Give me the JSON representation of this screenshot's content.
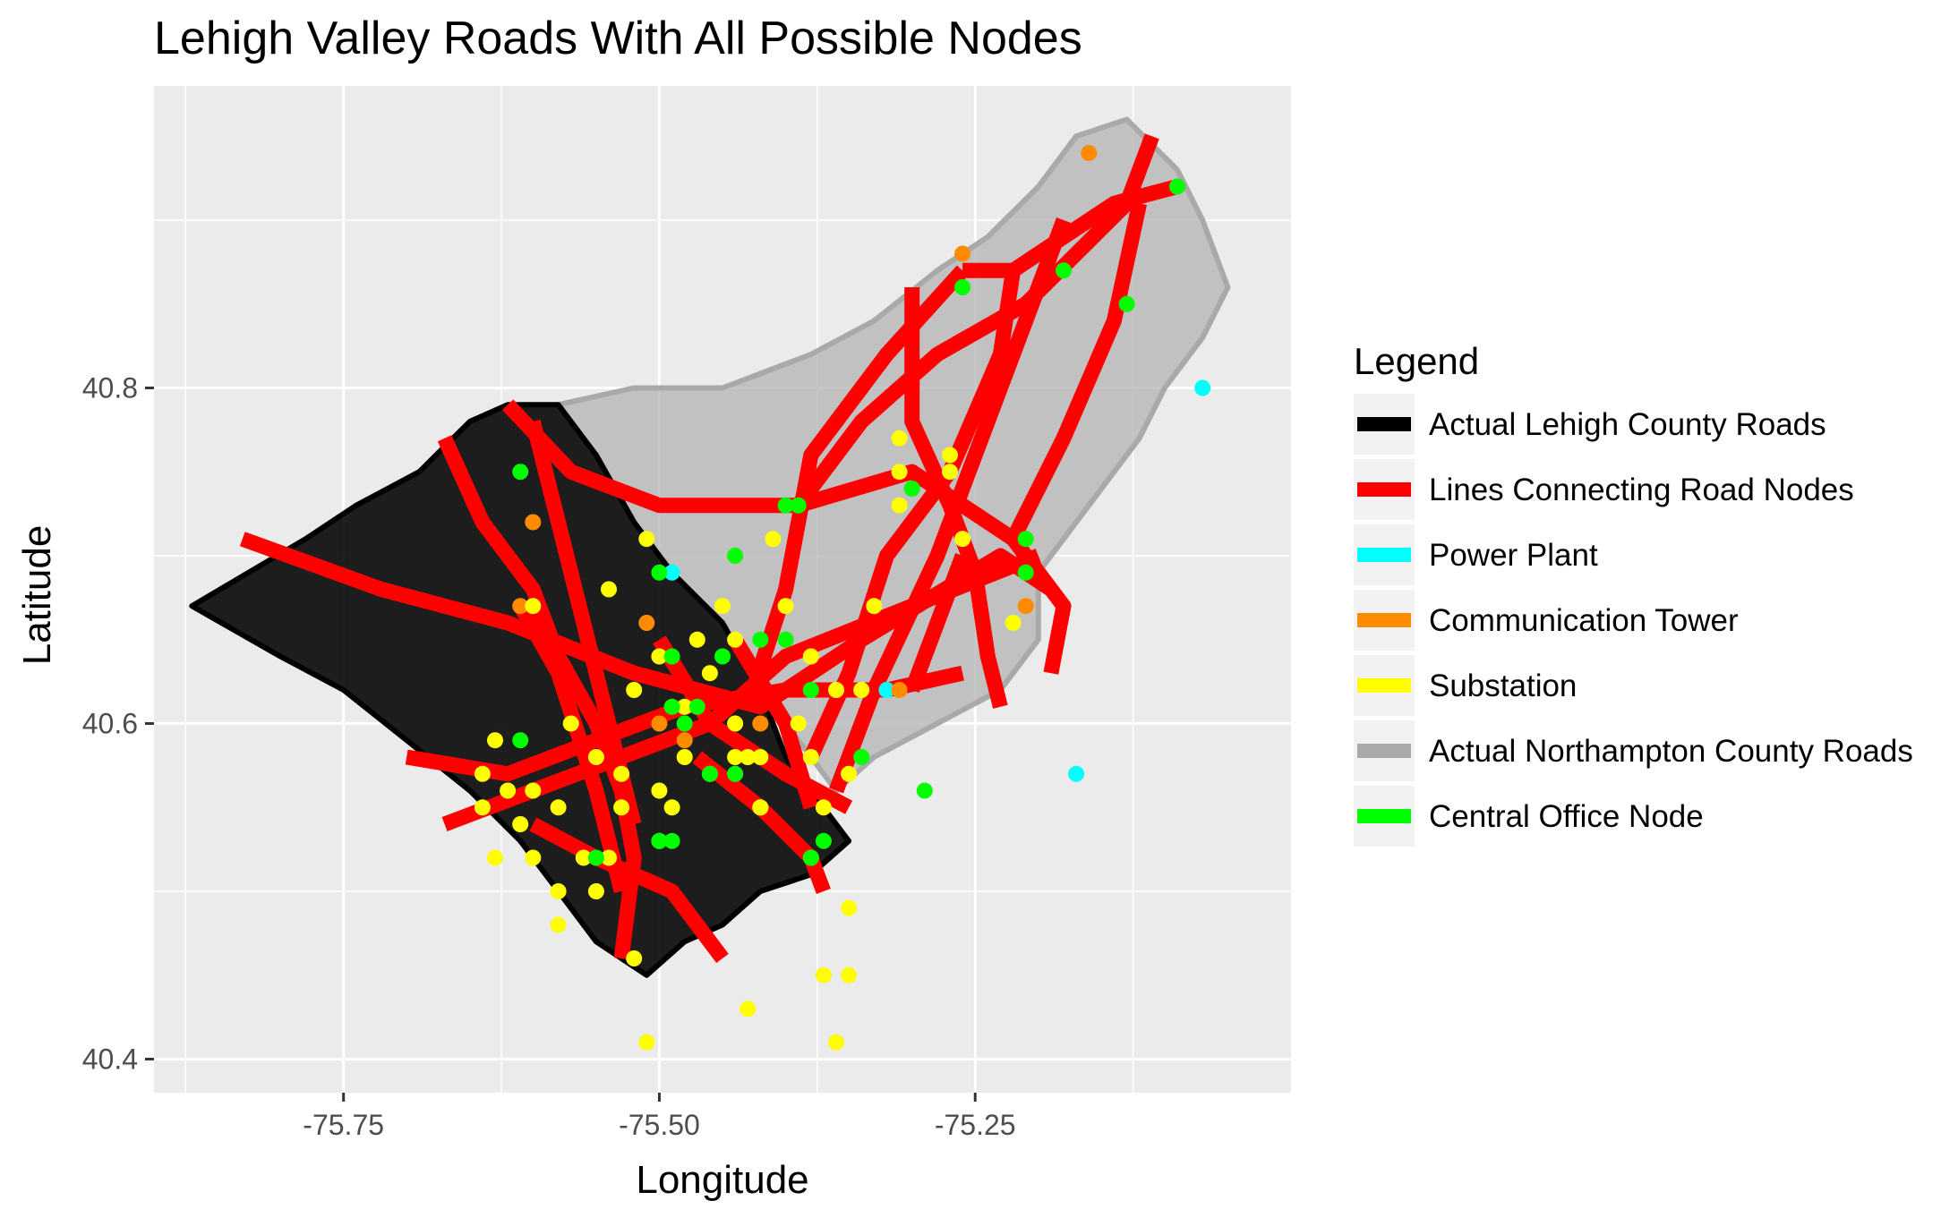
{
  "chart_data": {
    "type": "map",
    "title": "Lehigh Valley Roads With All Possible Nodes",
    "xlabel": "Longitude",
    "ylabel": "Latitude",
    "xlim": [
      -75.9,
      -75.0
    ],
    "ylim": [
      40.38,
      40.98
    ],
    "xticks": [
      -75.75,
      -75.5,
      -75.25
    ],
    "xtick_labels": [
      "-75.75",
      "-75.50",
      "-75.25"
    ],
    "yticks": [
      40.4,
      40.6,
      40.8
    ],
    "ytick_labels": [
      "40.4",
      "40.6",
      "40.8"
    ],
    "grid": true,
    "legend": {
      "title": "Legend",
      "position": "right",
      "entries": [
        {
          "label": "Actual Lehigh County Roads",
          "color": "#000000"
        },
        {
          "label": "Lines Connecting Road Nodes",
          "color": "#ff0000"
        },
        {
          "label": "Power Plant",
          "color": "#00ffff"
        },
        {
          "label": "Communication Tower",
          "color": "#ff8c00"
        },
        {
          "label": "Substation",
          "color": "#ffff00"
        },
        {
          "label": "Actual Northampton County Roads",
          "color": "#a9a9a9"
        },
        {
          "label": "Central Office Node",
          "color": "#00ff00"
        }
      ]
    },
    "regions": {
      "lehigh_county": [
        [
          -75.87,
          40.67
        ],
        [
          -75.78,
          40.71
        ],
        [
          -75.74,
          40.73
        ],
        [
          -75.69,
          40.75
        ],
        [
          -75.65,
          40.78
        ],
        [
          -75.62,
          40.79
        ],
        [
          -75.58,
          40.79
        ],
        [
          -75.55,
          40.76
        ],
        [
          -75.52,
          40.72
        ],
        [
          -75.49,
          40.69
        ],
        [
          -75.45,
          40.66
        ],
        [
          -75.42,
          40.62
        ],
        [
          -75.4,
          40.58
        ],
        [
          -75.37,
          40.55
        ],
        [
          -75.35,
          40.53
        ],
        [
          -75.38,
          40.51
        ],
        [
          -75.42,
          40.5
        ],
        [
          -75.45,
          40.48
        ],
        [
          -75.48,
          40.47
        ],
        [
          -75.51,
          40.45
        ],
        [
          -75.55,
          40.47
        ],
        [
          -75.58,
          40.5
        ],
        [
          -75.61,
          40.53
        ],
        [
          -75.65,
          40.56
        ],
        [
          -75.7,
          40.59
        ],
        [
          -75.75,
          40.62
        ],
        [
          -75.8,
          40.64
        ]
      ],
      "northampton_county": [
        [
          -75.58,
          40.79
        ],
        [
          -75.52,
          40.8
        ],
        [
          -75.45,
          40.8
        ],
        [
          -75.38,
          40.82
        ],
        [
          -75.33,
          40.84
        ],
        [
          -75.28,
          40.87
        ],
        [
          -75.24,
          40.89
        ],
        [
          -75.2,
          40.92
        ],
        [
          -75.17,
          40.95
        ],
        [
          -75.13,
          40.96
        ],
        [
          -75.09,
          40.93
        ],
        [
          -75.07,
          40.9
        ],
        [
          -75.05,
          40.86
        ],
        [
          -75.07,
          40.83
        ],
        [
          -75.1,
          40.8
        ],
        [
          -75.12,
          40.77
        ],
        [
          -75.16,
          40.73
        ],
        [
          -75.2,
          40.69
        ],
        [
          -75.2,
          40.65
        ],
        [
          -75.23,
          40.62
        ],
        [
          -75.28,
          40.6
        ],
        [
          -75.33,
          40.58
        ],
        [
          -75.36,
          40.56
        ],
        [
          -75.38,
          40.58
        ],
        [
          -75.4,
          40.6
        ],
        [
          -75.42,
          40.62
        ],
        [
          -75.45,
          40.66
        ],
        [
          -75.49,
          40.69
        ],
        [
          -75.52,
          40.72
        ],
        [
          -75.55,
          40.76
        ]
      ]
    },
    "connecting_lines": [
      [
        [
          -75.83,
          40.71
        ],
        [
          -75.72,
          40.68
        ],
        [
          -75.62,
          40.66
        ],
        [
          -75.52,
          40.63
        ],
        [
          -75.42,
          40.61
        ],
        [
          -75.34,
          40.65
        ],
        [
          -75.23,
          40.7
        ],
        [
          -75.19,
          40.68
        ]
      ],
      [
        [
          -75.67,
          40.77
        ],
        [
          -75.64,
          40.72
        ],
        [
          -75.6,
          40.68
        ],
        [
          -75.58,
          40.64
        ],
        [
          -75.55,
          40.6
        ],
        [
          -75.53,
          40.56
        ],
        [
          -75.52,
          40.52
        ],
        [
          -75.53,
          40.46
        ]
      ],
      [
        [
          -75.6,
          40.78
        ],
        [
          -75.58,
          40.72
        ],
        [
          -75.56,
          40.66
        ],
        [
          -75.54,
          40.6
        ],
        [
          -75.52,
          40.54
        ]
      ],
      [
        [
          -75.62,
          40.79
        ],
        [
          -75.57,
          40.75
        ],
        [
          -75.5,
          40.73
        ],
        [
          -75.43,
          40.73
        ],
        [
          -75.39,
          40.73
        ],
        [
          -75.3,
          40.75
        ],
        [
          -75.22,
          40.71
        ]
      ],
      [
        [
          -75.7,
          40.58
        ],
        [
          -75.62,
          40.57
        ],
        [
          -75.55,
          40.59
        ],
        [
          -75.48,
          40.61
        ],
        [
          -75.4,
          40.62
        ],
        [
          -75.32,
          40.62
        ],
        [
          -75.26,
          40.63
        ]
      ],
      [
        [
          -75.67,
          40.54
        ],
        [
          -75.6,
          40.56
        ],
        [
          -75.53,
          40.58
        ],
        [
          -75.46,
          40.6
        ],
        [
          -75.4,
          40.64
        ],
        [
          -75.3,
          40.67
        ],
        [
          -75.2,
          40.7
        ]
      ],
      [
        [
          -75.47,
          40.58
        ],
        [
          -75.42,
          40.55
        ],
        [
          -75.38,
          40.52
        ],
        [
          -75.37,
          40.5
        ]
      ],
      [
        [
          -75.6,
          40.54
        ],
        [
          -75.55,
          40.52
        ],
        [
          -75.49,
          40.5
        ],
        [
          -75.45,
          40.46
        ]
      ],
      [
        [
          -75.39,
          40.73
        ],
        [
          -75.34,
          40.78
        ],
        [
          -75.28,
          40.82
        ],
        [
          -75.21,
          40.85
        ],
        [
          -75.13,
          40.91
        ],
        [
          -75.11,
          40.95
        ]
      ],
      [
        [
          -75.26,
          40.87
        ],
        [
          -75.22,
          40.87
        ],
        [
          -75.14,
          40.91
        ],
        [
          -75.09,
          40.92
        ]
      ],
      [
        [
          -75.43,
          40.61
        ],
        [
          -75.4,
          40.68
        ],
        [
          -75.38,
          40.76
        ],
        [
          -75.32,
          40.82
        ],
        [
          -75.26,
          40.87
        ]
      ],
      [
        [
          -75.3,
          40.86
        ],
        [
          -75.3,
          40.78
        ],
        [
          -75.27,
          40.73
        ],
        [
          -75.25,
          40.69
        ],
        [
          -75.24,
          40.64
        ],
        [
          -75.23,
          40.61
        ]
      ],
      [
        [
          -75.22,
          40.87
        ],
        [
          -75.23,
          40.82
        ],
        [
          -75.27,
          40.75
        ],
        [
          -75.32,
          40.7
        ],
        [
          -75.35,
          40.63
        ],
        [
          -75.38,
          40.58
        ]
      ],
      [
        [
          -75.18,
          40.9
        ],
        [
          -75.21,
          40.84
        ],
        [
          -75.25,
          40.76
        ],
        [
          -75.28,
          40.7
        ],
        [
          -75.33,
          40.62
        ],
        [
          -75.36,
          40.56
        ]
      ],
      [
        [
          -75.12,
          40.91
        ],
        [
          -75.14,
          40.84
        ],
        [
          -75.18,
          40.77
        ],
        [
          -75.22,
          40.71
        ],
        [
          -75.18,
          40.67
        ],
        [
          -75.19,
          40.63
        ]
      ],
      [
        [
          -75.61,
          40.67
        ],
        [
          -75.58,
          40.63
        ],
        [
          -75.55,
          40.56
        ],
        [
          -75.53,
          40.5
        ]
      ],
      [
        [
          -75.5,
          40.65
        ],
        [
          -75.46,
          40.6
        ],
        [
          -75.4,
          40.57
        ],
        [
          -75.35,
          40.55
        ]
      ],
      [
        [
          -75.44,
          40.65
        ],
        [
          -75.4,
          40.6
        ],
        [
          -75.38,
          40.55
        ]
      ],
      [
        [
          -75.3,
          40.62
        ],
        [
          -75.28,
          40.66
        ],
        [
          -75.26,
          40.7
        ]
      ]
    ],
    "series": [
      {
        "name": "Power Plant",
        "color": "#00ffff",
        "points": [
          [
            -75.07,
            40.8
          ],
          [
            -75.17,
            40.57
          ],
          [
            -75.49,
            40.69
          ],
          [
            -75.32,
            40.62
          ]
        ]
      },
      {
        "name": "Communication Tower",
        "color": "#ff8c00",
        "points": [
          [
            -75.16,
            40.94
          ],
          [
            -75.26,
            40.88
          ],
          [
            -75.6,
            40.72
          ],
          [
            -75.61,
            40.67
          ],
          [
            -75.51,
            40.66
          ],
          [
            -75.5,
            40.6
          ],
          [
            -75.48,
            40.59
          ],
          [
            -75.44,
            40.57
          ],
          [
            -75.42,
            40.6
          ],
          [
            -75.31,
            40.62
          ],
          [
            -75.21,
            40.67
          ]
        ]
      },
      {
        "name": "Substation",
        "color": "#ffff00",
        "points": [
          [
            -75.51,
            40.71
          ],
          [
            -75.54,
            40.68
          ],
          [
            -75.6,
            40.67
          ],
          [
            -75.5,
            40.64
          ],
          [
            -75.52,
            40.62
          ],
          [
            -75.47,
            40.65
          ],
          [
            -75.45,
            40.67
          ],
          [
            -75.4,
            40.67
          ],
          [
            -75.38,
            40.64
          ],
          [
            -75.36,
            40.62
          ],
          [
            -75.34,
            40.62
          ],
          [
            -75.33,
            40.67
          ],
          [
            -75.31,
            40.73
          ],
          [
            -75.27,
            40.76
          ],
          [
            -75.27,
            40.75
          ],
          [
            -75.31,
            40.75
          ],
          [
            -75.31,
            40.77
          ],
          [
            -75.26,
            40.71
          ],
          [
            -75.22,
            40.66
          ],
          [
            -75.41,
            40.71
          ],
          [
            -75.44,
            40.65
          ],
          [
            -75.46,
            40.63
          ],
          [
            -75.48,
            40.61
          ],
          [
            -75.44,
            40.6
          ],
          [
            -75.42,
            40.58
          ],
          [
            -75.39,
            40.6
          ],
          [
            -75.38,
            40.58
          ],
          [
            -75.37,
            40.55
          ],
          [
            -75.63,
            40.59
          ],
          [
            -75.64,
            40.57
          ],
          [
            -75.62,
            40.56
          ],
          [
            -75.6,
            40.56
          ],
          [
            -75.57,
            40.6
          ],
          [
            -75.55,
            40.58
          ],
          [
            -75.53,
            40.57
          ],
          [
            -75.5,
            40.56
          ],
          [
            -75.49,
            40.55
          ],
          [
            -75.48,
            40.58
          ],
          [
            -75.46,
            40.57
          ],
          [
            -75.44,
            40.58
          ],
          [
            -75.43,
            40.58
          ],
          [
            -75.42,
            40.55
          ],
          [
            -75.58,
            40.55
          ],
          [
            -75.58,
            40.5
          ],
          [
            -75.6,
            40.52
          ],
          [
            -75.56,
            40.52
          ],
          [
            -75.54,
            40.52
          ],
          [
            -75.63,
            40.52
          ],
          [
            -75.64,
            40.55
          ],
          [
            -75.61,
            40.54
          ],
          [
            -75.58,
            40.48
          ],
          [
            -75.53,
            40.55
          ],
          [
            -75.5,
            40.53
          ],
          [
            -75.55,
            40.5
          ],
          [
            -75.52,
            40.46
          ],
          [
            -75.51,
            40.41
          ],
          [
            -75.43,
            40.43
          ],
          [
            -75.37,
            40.45
          ],
          [
            -75.36,
            40.41
          ],
          [
            -75.35,
            40.45
          ],
          [
            -75.35,
            40.49
          ],
          [
            -75.38,
            40.52
          ],
          [
            -75.35,
            40.57
          ],
          [
            -75.42,
            40.55
          ]
        ]
      },
      {
        "name": "Central Office Node",
        "color": "#00ff00",
        "points": [
          [
            -75.09,
            40.92
          ],
          [
            -75.18,
            40.87
          ],
          [
            -75.26,
            40.86
          ],
          [
            -75.13,
            40.85
          ],
          [
            -75.3,
            40.74
          ],
          [
            -75.4,
            40.73
          ],
          [
            -75.39,
            40.73
          ],
          [
            -75.21,
            40.71
          ],
          [
            -75.21,
            40.69
          ],
          [
            -75.44,
            40.7
          ],
          [
            -75.5,
            40.69
          ],
          [
            -75.4,
            40.65
          ],
          [
            -75.42,
            40.65
          ],
          [
            -75.45,
            40.64
          ],
          [
            -75.49,
            40.64
          ],
          [
            -75.48,
            40.6
          ],
          [
            -75.47,
            40.61
          ],
          [
            -75.49,
            40.61
          ],
          [
            -75.38,
            40.62
          ],
          [
            -75.34,
            40.58
          ],
          [
            -75.29,
            40.56
          ],
          [
            -75.44,
            40.57
          ],
          [
            -75.46,
            40.57
          ],
          [
            -75.61,
            40.75
          ],
          [
            -75.61,
            40.59
          ],
          [
            -75.55,
            40.52
          ],
          [
            -75.5,
            40.53
          ],
          [
            -75.49,
            40.53
          ],
          [
            -75.37,
            40.53
          ],
          [
            -75.38,
            40.52
          ]
        ]
      }
    ]
  }
}
